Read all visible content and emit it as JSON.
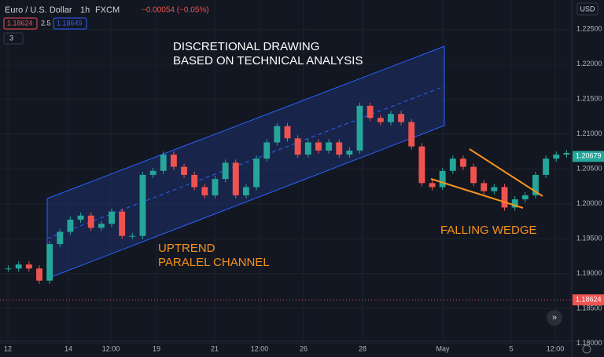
{
  "header": {
    "symbol": "Euro / U.S. Dollar",
    "interval": "1h",
    "source": "FXCM",
    "change": "−0.00054 (−0.05%)",
    "bid": 1.18624,
    "spread": 2.5,
    "ask": 1.18649,
    "indicators": 3
  },
  "currency": "USD",
  "chart_data": {
    "type": "candlestick",
    "values": [
      1.19073,
      1.19131,
      1.19073,
      1.18899,
      1.19423,
      1.19598,
      1.19773,
      1.19831,
      1.19656,
      1.19714,
      1.19889,
      1.1954,
      1.1954,
      1.20414,
      1.20472,
      1.20705,
      1.2053,
      1.20414,
      1.20239,
      1.20122,
      1.20355,
      1.20589,
      1.20122,
      1.20239,
      1.20647,
      1.2088,
      1.21113,
      1.20938,
      1.20705,
      1.2088,
      1.20763,
      1.2088,
      1.20705,
      1.20763,
      1.21404,
      1.2123,
      1.21171,
      1.21288,
      1.21171,
      1.20822,
      1.20297,
      1.20239,
      1.20472,
      1.20647,
      1.2053,
      1.20297,
      1.20181,
      1.20239,
      1.19947,
      1.20064,
      1.20122,
      1.20414,
      1.20647,
      1.20705,
      1.20728
    ],
    "up_color": "#26a69a",
    "down_color": "#ef5350",
    "ylim": [
      1.1803,
      1.2292
    ],
    "yticks": [
      {
        "value": 1.225,
        "label": "1.22500"
      },
      {
        "value": 1.22,
        "label": "1.22000"
      },
      {
        "value": 1.215,
        "label": "1.21500"
      },
      {
        "value": 1.21,
        "label": "1.21000"
      },
      {
        "value": 1.205,
        "label": "1.20500"
      },
      {
        "value": 1.2,
        "label": "1.20000"
      },
      {
        "value": 1.195,
        "label": "1.19500"
      },
      {
        "value": 1.19,
        "label": "1.19000"
      },
      {
        "value": 1.185,
        "label": "1.18500"
      },
      {
        "value": 1.18,
        "label": "1.18000"
      }
    ],
    "x_labels": [
      "12",
      "14",
      "12:00",
      "19",
      "21",
      "12:00",
      "26",
      "28",
      "May",
      "5",
      "12:00"
    ],
    "last_price": 1.20679,
    "ref_price": 1.18624,
    "annotations": {
      "top": [
        "DISCRETIONAL DRAWING",
        "BASED ON TECHNICAL ANALYSIS"
      ],
      "channel": [
        "UPTREND",
        "PARALEL CHANNEL"
      ],
      "wedge": "FALLING WEDGE"
    }
  }
}
